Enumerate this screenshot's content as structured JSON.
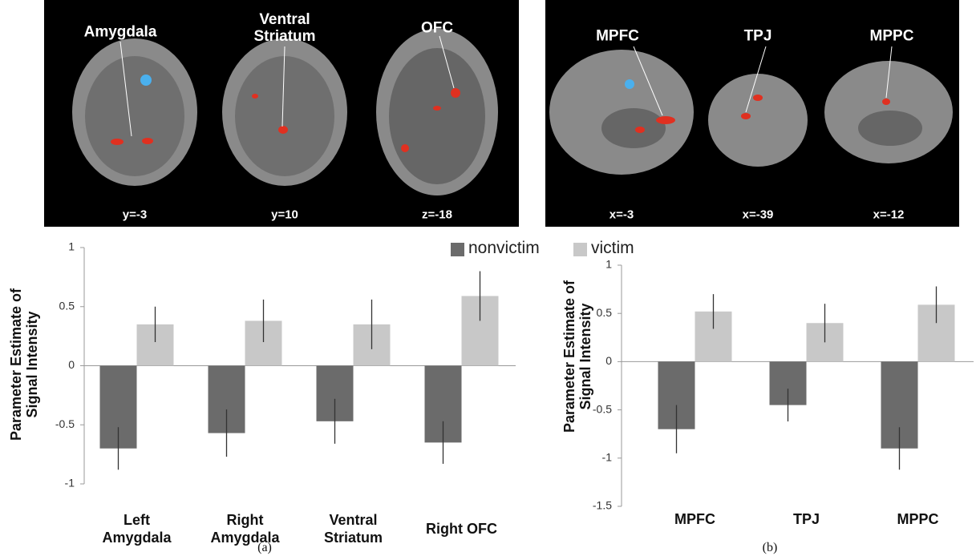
{
  "brain_images": [
    {
      "regions": [
        "Amygdala",
        "Ventral Striatum",
        "OFC"
      ],
      "slices": [
        "y=-3",
        "y=10",
        "z=-18"
      ]
    },
    {
      "regions": [
        "MPFC",
        "TPJ",
        "MPPC"
      ],
      "slices": [
        "x=-3",
        "x=-39",
        "x=-12"
      ]
    }
  ],
  "chart_data": [
    {
      "type": "bar",
      "caption": "(a)",
      "y_label": "Parameter Estimate of Signal Intensity",
      "categories": [
        "Left Amygdala",
        "Right Amygdala",
        "Ventral Striatum",
        "Right OFC"
      ],
      "series": [
        {
          "name": "nonvictim",
          "color": "#6b6b6b",
          "values": [
            -0.7,
            -0.57,
            -0.47,
            -0.65
          ],
          "errors": [
            0.18,
            0.2,
            0.19,
            0.18
          ]
        },
        {
          "name": "victim",
          "color": "#c8c8c8",
          "values": [
            0.35,
            0.38,
            0.35,
            0.59
          ],
          "errors": [
            0.15,
            0.18,
            0.21,
            0.21
          ]
        }
      ],
      "ylim": [
        -1,
        1
      ],
      "yticks": [
        -1,
        -0.5,
        0,
        0.5,
        1
      ]
    },
    {
      "type": "bar",
      "caption": "(b)",
      "y_label": "Parameter Estimate of Signal Intensity",
      "categories": [
        "MPFC",
        "TPJ",
        "MPPC"
      ],
      "series": [
        {
          "color": "#6b6b6b",
          "values": [
            -0.7,
            -0.45,
            -0.9
          ],
          "errors": [
            0.25,
            0.17,
            0.22
          ]
        },
        {
          "color": "#c8c8c8",
          "values": [
            0.52,
            0.4,
            0.59
          ],
          "errors": [
            0.18,
            0.2,
            0.19
          ]
        }
      ],
      "ylim": [
        -1.5,
        1
      ],
      "yticks": [
        -1.5,
        -1,
        -0.5,
        0,
        0.5,
        1
      ]
    }
  ]
}
